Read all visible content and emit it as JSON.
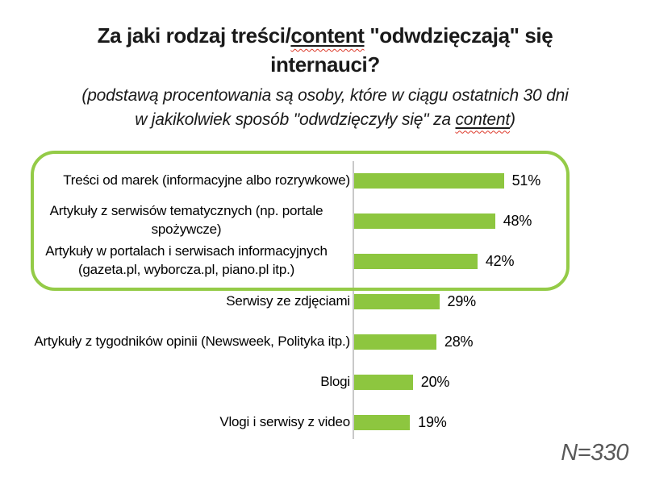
{
  "title": {
    "line1_prefix": "Za jaki rodzaj treści/",
    "content_word": "content",
    "line1_suffix": " \"odwdzięczają\" się",
    "line2": "internauci?"
  },
  "subtitle": {
    "line1": "(podstawą procentowania są osoby, które w ciągu ostatnich 30 dni",
    "line2_prefix": "w jakikolwiek sposób \"odwdzięczyły się\" za ",
    "content_word": "content",
    "suffix": ")"
  },
  "chart_data": {
    "type": "bar",
    "orientation": "horizontal",
    "title": "Za jaki rodzaj treści/content \"odwdzięczają\" się internauci?",
    "subtitle": "(podstawą procentowania są osoby, które w ciągu ostatnich 30 dni w jakikolwiek sposób \"odwdzięczyły się\" za content)",
    "categories": [
      "Treści od marek (informacyjne albo rozrywkowe)",
      "Artykuły z serwisów tematycznych (np. portale spożywcze)",
      "Artykuły w portalach i serwisach informacyjnych (gazeta.pl, wyborcza.pl, piano.pl itp.)",
      "Serwisy ze zdjęciami",
      "Artykuły z tygodników opinii (Newsweek, Polityka itp.)",
      "Blogi",
      "Vlogi i serwisy z video"
    ],
    "values": [
      51,
      48,
      42,
      29,
      28,
      20,
      19
    ],
    "value_labels": [
      "51%",
      "48%",
      "42%",
      "29%",
      "28%",
      "20%",
      "19%"
    ],
    "xlim": [
      0,
      55
    ],
    "grid": false,
    "legend": false,
    "highlighted_category_indexes": [
      0,
      1,
      2
    ],
    "sample_size_label": "N=330",
    "colors": {
      "bar": "#8DC63F",
      "highlight_box_border": "#94CB47",
      "axis_line": "#C9C9C9",
      "sample_size_text": "#595959",
      "squiggle": "#DD3A2B"
    }
  }
}
